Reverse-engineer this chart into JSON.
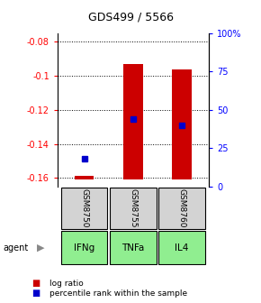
{
  "title": "GDS499 / 5566",
  "samples": [
    "GSM8750",
    "GSM8755",
    "GSM8760"
  ],
  "agents": [
    "IFNg",
    "TNFa",
    "IL4"
  ],
  "log_ratio_baseline": -0.161,
  "log_ratio_tops": [
    -0.159,
    -0.093,
    -0.096
  ],
  "percentile_ranks": [
    0.18,
    0.44,
    0.4
  ],
  "ylim_left": [
    -0.165,
    -0.075
  ],
  "yticks_left": [
    -0.16,
    -0.14,
    -0.12,
    -0.1,
    -0.08
  ],
  "ytick_left_labels": [
    "-0.16",
    "-0.14",
    "-0.12",
    "-0.1",
    "-0.08"
  ],
  "yticks_right_pct": [
    0,
    25,
    50,
    75,
    100
  ],
  "ytick_right_labels": [
    "0",
    "25",
    "50",
    "75",
    "100%"
  ],
  "bar_color": "#cc0000",
  "dot_color": "#0000cc",
  "agent_bg_color": "#90ee90",
  "sample_bg_color": "#d3d3d3",
  "agent_label": "agent"
}
